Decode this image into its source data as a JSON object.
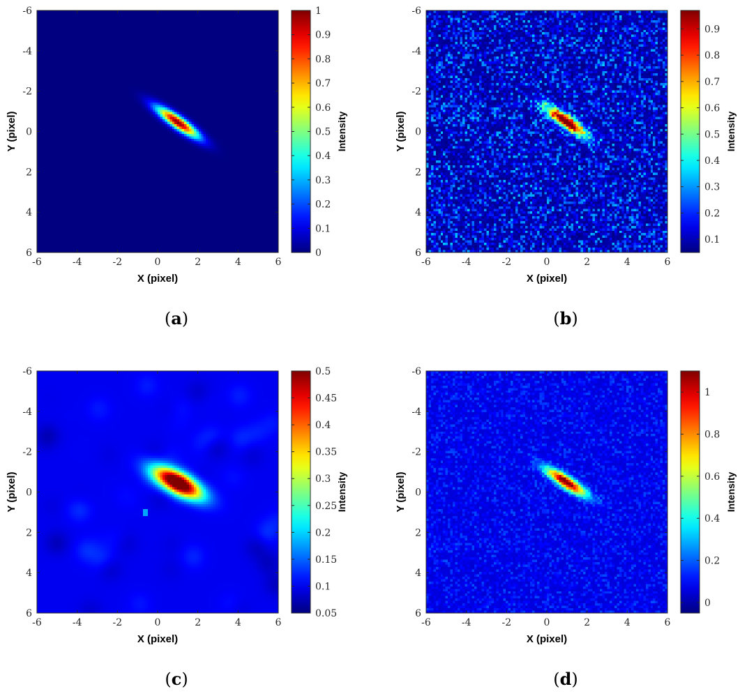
{
  "chart_data": [
    {
      "panel": "(a)",
      "type": "heatmap",
      "xlabel": "X (pixel)",
      "ylabel": "Y (pixel)",
      "colorbar_label": "Intensity",
      "xlim": [
        -6,
        6
      ],
      "ylim": [
        -6,
        6
      ],
      "y_direction": "reversed",
      "xticks": [
        -6,
        -4,
        -2,
        0,
        2,
        4,
        6
      ],
      "yticks": [
        -6,
        -4,
        -2,
        0,
        2,
        4,
        6
      ],
      "clim": [
        0,
        1
      ],
      "cbar_ticks": [
        "0",
        "0.1",
        "0.2",
        "0.3",
        "0.4",
        "0.5",
        "0.6",
        "0.7",
        "0.8",
        "0.9",
        "1"
      ],
      "cbar_tick_values": [
        0,
        0.1,
        0.2,
        0.3,
        0.4,
        0.5,
        0.6,
        0.7,
        0.8,
        0.9,
        1
      ],
      "colormap": "jet",
      "spot": {
        "center_x": 1.0,
        "center_y": -0.45,
        "angle_deg": 35,
        "length": 1.9,
        "width": 0.45,
        "peak": 1.0
      },
      "background": 0.0,
      "noise": 0.0
    },
    {
      "panel": "(b)",
      "type": "heatmap",
      "xlabel": "X (pixel)",
      "ylabel": "Y (pixel)",
      "colorbar_label": "Intensity",
      "xlim": [
        -6,
        6
      ],
      "ylim": [
        -6,
        6
      ],
      "y_direction": "reversed",
      "xticks": [
        -6,
        -4,
        -2,
        0,
        2,
        4,
        6
      ],
      "yticks": [
        -6,
        -4,
        -2,
        0,
        2,
        4,
        6
      ],
      "clim": [
        0.05,
        0.97
      ],
      "cbar_ticks": [
        "0.1",
        "0.2",
        "0.3",
        "0.4",
        "0.5",
        "0.6",
        "0.7",
        "0.8",
        "0.9"
      ],
      "cbar_tick_values": [
        0.1,
        0.2,
        0.3,
        0.4,
        0.5,
        0.6,
        0.7,
        0.8,
        0.9
      ],
      "colormap": "jet",
      "spot": {
        "center_x": 0.95,
        "center_y": -0.5,
        "angle_deg": 35,
        "length": 1.8,
        "width": 0.45,
        "peak": 0.95
      },
      "background": 0.07,
      "noise": 0.12
    },
    {
      "panel": "(c)",
      "type": "heatmap",
      "xlabel": "X (pixel)",
      "ylabel": "Y (pixel)",
      "colorbar_label": "Intensity",
      "xlim": [
        -6,
        6
      ],
      "ylim": [
        -6,
        6
      ],
      "y_direction": "reversed",
      "xticks": [
        -6,
        -4,
        -2,
        0,
        2,
        4,
        6
      ],
      "yticks": [
        -6,
        -4,
        -2,
        0,
        2,
        4,
        6
      ],
      "clim": [
        0.05,
        0.5
      ],
      "cbar_ticks": [
        "0.05",
        "0.1",
        "0.15",
        "0.2",
        "0.25",
        "0.3",
        "0.35",
        "0.4",
        "0.45",
        "0.5"
      ],
      "cbar_tick_values": [
        0.05,
        0.1,
        0.15,
        0.2,
        0.25,
        0.3,
        0.35,
        0.4,
        0.45,
        0.5
      ],
      "colormap": "jet",
      "spot": {
        "center_x": 1.0,
        "center_y": -0.45,
        "angle_deg": 28,
        "length": 2.0,
        "width": 0.8,
        "peak": 0.5
      },
      "hot_pixel": {
        "x": -0.6,
        "y": 1.05,
        "value": 0.18
      },
      "background": 0.1,
      "noise": 0.04
    },
    {
      "panel": "(d)",
      "type": "heatmap",
      "xlabel": "X (pixel)",
      "ylabel": "Y (pixel)",
      "colorbar_label": "Intensity",
      "xlim": [
        -6,
        6
      ],
      "ylim": [
        -6,
        6
      ],
      "y_direction": "reversed",
      "xticks": [
        -6,
        -4,
        -2,
        0,
        2,
        4,
        6
      ],
      "yticks": [
        -6,
        -4,
        -2,
        0,
        2,
        4,
        6
      ],
      "clim": [
        -0.05,
        1.1
      ],
      "cbar_ticks": [
        "0",
        "0.2",
        "0.4",
        "0.6",
        "0.8",
        "1"
      ],
      "cbar_tick_values": [
        0,
        0.2,
        0.4,
        0.6,
        0.8,
        1
      ],
      "colormap": "jet",
      "spot": {
        "center_x": 0.95,
        "center_y": -0.5,
        "angle_deg": 33,
        "length": 1.8,
        "width": 0.45,
        "peak": 1.05
      },
      "background": 0.05,
      "noise": 0.06
    }
  ]
}
